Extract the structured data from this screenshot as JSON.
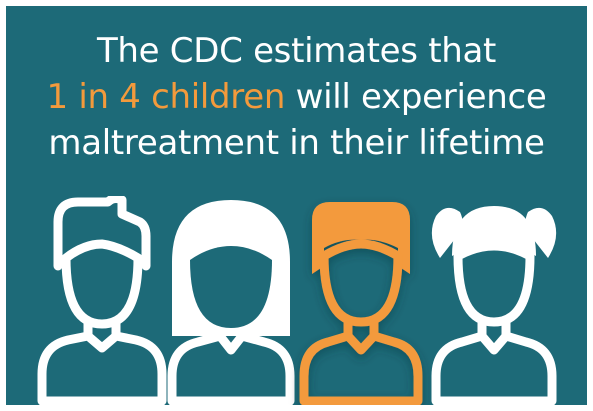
{
  "headline": {
    "line1": "The CDC estimates that",
    "line2_highlight": "1 in 4 children",
    "line2_rest": " will experience",
    "line3": "maltreatment in their lifetime"
  },
  "figures": [
    {
      "name": "boy",
      "color": "#ffffff"
    },
    {
      "name": "girl-long-hair",
      "color": "#ffffff"
    },
    {
      "name": "boy-highlighted",
      "color": "#f39a3c"
    },
    {
      "name": "girl-pigtails",
      "color": "#ffffff"
    }
  ],
  "colors": {
    "background": "#1d6a78",
    "text": "#ffffff",
    "accent": "#f39a3c"
  }
}
